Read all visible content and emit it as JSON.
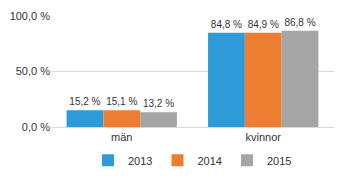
{
  "chart_data": {
    "type": "bar",
    "categories": [
      "män",
      "kvinnor"
    ],
    "series": [
      {
        "name": "2013",
        "color": "#2e9bd9",
        "values": [
          15.2,
          84.8
        ],
        "value_labels": [
          "15,2 %",
          "84,8 %"
        ]
      },
      {
        "name": "2014",
        "color": "#ed7d31",
        "values": [
          15.1,
          84.9
        ],
        "value_labels": [
          "15,1 %",
          "84,9 %"
        ]
      },
      {
        "name": "2015",
        "color": "#a5a5a5",
        "values": [
          13.2,
          86.8
        ],
        "value_labels": [
          "13,2 %",
          "86,8 %"
        ]
      }
    ],
    "ylim": [
      0,
      100
    ],
    "yticks": [
      {
        "value": 0,
        "label": "0,0 %"
      },
      {
        "value": 50,
        "label": "50,0 %"
      },
      {
        "value": 100,
        "label": "100,0 %"
      }
    ],
    "grid": true,
    "legend": "bottom",
    "data_labels": true
  }
}
